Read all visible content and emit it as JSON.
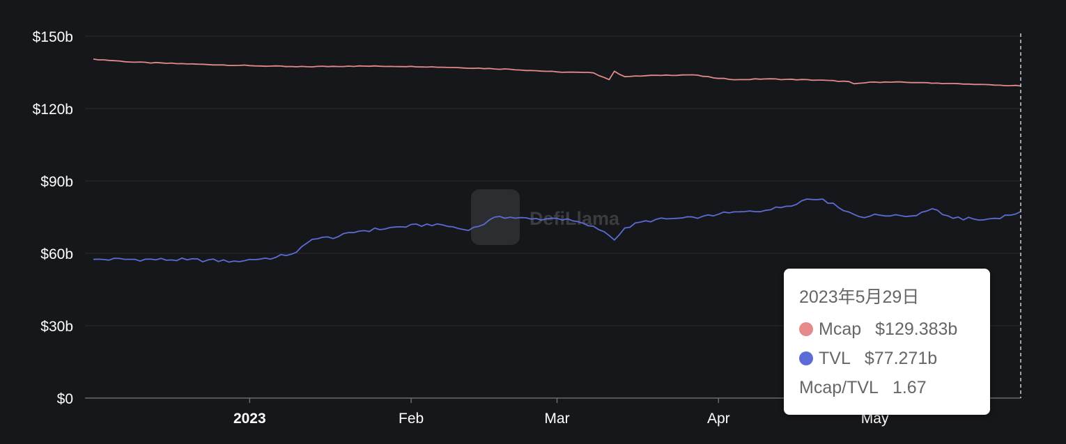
{
  "chart_data": {
    "type": "line",
    "x_ticks": [
      "2023",
      "Feb",
      "Mar",
      "Apr",
      "May"
    ],
    "y_ticks": [
      "$0",
      "$30b",
      "$60b",
      "$90b",
      "$120b",
      "$150b"
    ],
    "ylim": [
      0,
      150
    ],
    "x_range": [
      "2022-12-02",
      "2023-05-29"
    ],
    "grid": "horizontal",
    "series": [
      {
        "name": "Mcap",
        "color": "#e48a8a",
        "x": [
          "2022-12-02",
          "2022-12-10",
          "2022-12-20",
          "2023-01-01",
          "2023-01-10",
          "2023-01-20",
          "2023-02-01",
          "2023-02-10",
          "2023-02-20",
          "2023-03-01",
          "2023-03-08",
          "2023-03-11",
          "2023-03-12",
          "2023-03-14",
          "2023-03-20",
          "2023-03-27",
          "2023-04-01",
          "2023-04-05",
          "2023-04-10",
          "2023-04-20",
          "2023-04-26",
          "2023-04-27",
          "2023-05-01",
          "2023-05-10",
          "2023-05-20",
          "2023-05-29"
        ],
        "values": [
          140.5,
          139.2,
          138.5,
          137.8,
          137.3,
          137.6,
          137.5,
          137.0,
          136.3,
          135.2,
          134.8,
          132.0,
          135.5,
          133.2,
          133.8,
          134.0,
          132.5,
          132.0,
          132.3,
          131.8,
          131.2,
          130.3,
          131.0,
          130.8,
          130.0,
          129.383
        ]
      },
      {
        "name": "TVL",
        "color": "#5c6bd6",
        "x": [
          "2022-12-02",
          "2022-12-10",
          "2022-12-20",
          "2022-12-29",
          "2023-01-06",
          "2023-01-10",
          "2023-01-13",
          "2023-01-18",
          "2023-01-22",
          "2023-01-30",
          "2023-02-06",
          "2023-02-12",
          "2023-02-18",
          "2023-02-24",
          "2023-03-01",
          "2023-03-06",
          "2023-03-10",
          "2023-03-12",
          "2023-03-14",
          "2023-03-18",
          "2023-03-24",
          "2023-03-28",
          "2023-04-01",
          "2023-04-06",
          "2023-04-10",
          "2023-04-14",
          "2023-04-18",
          "2023-04-21",
          "2023-04-24",
          "2023-04-28",
          "2023-05-02",
          "2023-05-05",
          "2023-05-08",
          "2023-05-12",
          "2023-05-16",
          "2023-05-20",
          "2023-05-24",
          "2023-05-27",
          "2023-05-29"
        ],
        "values": [
          57.5,
          57.5,
          57.3,
          56.8,
          58.3,
          60.5,
          65.8,
          66.9,
          69.2,
          71.0,
          72.2,
          69.5,
          75.3,
          74.2,
          74.5,
          72.5,
          69.0,
          65.5,
          70.5,
          73.5,
          74.5,
          74.5,
          76.2,
          77.3,
          77.8,
          79.5,
          82.5,
          82.5,
          79.0,
          75.2,
          75.8,
          76.0,
          75.5,
          78.5,
          74.5,
          74.2,
          74.5,
          75.8,
          77.271
        ]
      }
    ],
    "watermark": "DefiLlama"
  },
  "tooltip": {
    "date": "2023年5月29日",
    "rows": [
      {
        "label": "Mcap",
        "value": "$129.383b",
        "color": "#e48a8a"
      },
      {
        "label": "TVL",
        "value": "$77.271b",
        "color": "#5c6bd6"
      },
      {
        "label": "Mcap/TVL",
        "value": "1.67"
      }
    ]
  }
}
